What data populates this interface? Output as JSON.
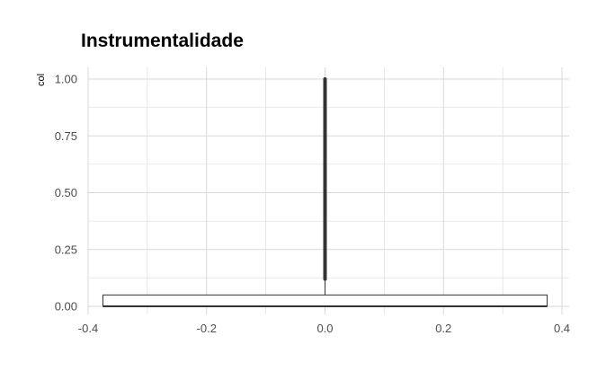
{
  "chart_data": {
    "type": "boxplot",
    "title": "Instrumentalidade",
    "xlabel": "",
    "ylabel": "col",
    "xlim": [
      -0.4,
      0.4
    ],
    "ylim": [
      0.0,
      1.0
    ],
    "x_ticks": [
      "-0.4",
      "-0.2",
      "0.0",
      "0.2",
      "0.4"
    ],
    "y_ticks": [
      "0.00",
      "0.25",
      "0.50",
      "0.75",
      "1.00"
    ],
    "grid": true,
    "box": {
      "x_center": 0.0,
      "x_half_width": 0.375,
      "lower_whisker": 0.0,
      "q1": 0.0,
      "median": 0.0,
      "q3": 0.05,
      "upper_whisker": 0.05,
      "outliers_range": [
        0.12,
        1.0
      ]
    },
    "colors": {
      "grid": "#d9d9d9",
      "box": "#333333",
      "outliers": "#333333"
    }
  }
}
